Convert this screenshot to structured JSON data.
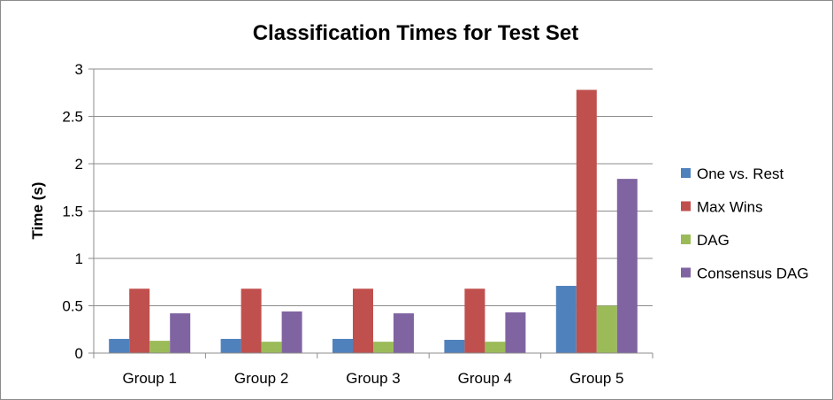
{
  "chart_data": {
    "type": "bar",
    "title": "Classification Times for Test Set",
    "xlabel": "",
    "ylabel": "Time (s)",
    "ylim": [
      0,
      3
    ],
    "yticks": [
      "0",
      "0.5",
      "1",
      "1.5",
      "2",
      "2.5",
      "3"
    ],
    "grid": true,
    "legend_position": "right",
    "categories": [
      "Group 1",
      "Group 2",
      "Group 3",
      "Group 4",
      "Group 5"
    ],
    "series": [
      {
        "name": "One vs. Rest",
        "color": "#4F81BD",
        "values": [
          0.15,
          0.15,
          0.15,
          0.14,
          0.71
        ]
      },
      {
        "name": "Max Wins",
        "color": "#C0504D",
        "values": [
          0.68,
          0.68,
          0.68,
          0.68,
          2.78
        ]
      },
      {
        "name": "DAG",
        "color": "#9BBB59",
        "values": [
          0.13,
          0.12,
          0.12,
          0.12,
          0.5
        ]
      },
      {
        "name": "Consensus DAG",
        "color": "#8064A2",
        "values": [
          0.42,
          0.44,
          0.42,
          0.43,
          1.84
        ]
      }
    ]
  }
}
